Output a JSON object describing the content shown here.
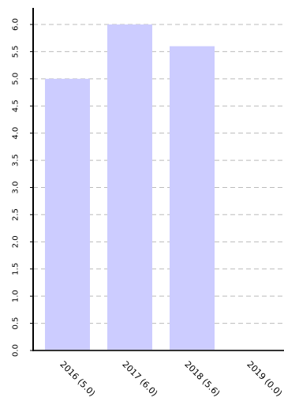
{
  "chart_data": {
    "type": "bar",
    "categories": [
      "2016 (5.0)",
      "2017 (6.0)",
      "2018 (5.6)",
      "2019 (0.0)"
    ],
    "values": [
      5.0,
      6.0,
      5.6,
      0.0
    ],
    "y_ticks": [
      "0.0",
      "0.5",
      "1.0",
      "1.5",
      "2.0",
      "2.5",
      "3.0",
      "3.5",
      "4.0",
      "4.5",
      "5.0",
      "5.5",
      "6.0"
    ],
    "ylim": [
      0,
      6.0
    ],
    "grid": true,
    "bar_color": "#ccccff",
    "grid_color": "#bbbbbb",
    "axis_color": "#000000"
  }
}
